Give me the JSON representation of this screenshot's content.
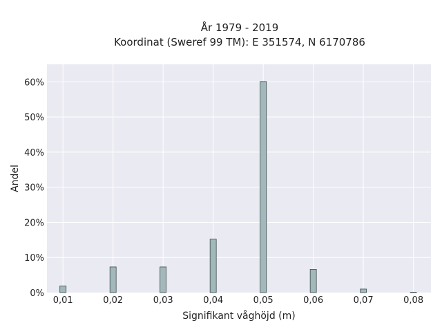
{
  "chart_data": {
    "type": "bar",
    "title": "År 1979 - 2019",
    "subtitle": "Koordinat (Sweref 99 TM): E 351574, N 6170786",
    "xlabel": "Signifikant våghöjd (m)",
    "ylabel": "Andel",
    "x": [
      0.01,
      0.02,
      0.03,
      0.04,
      0.05,
      0.06,
      0.07,
      0.08
    ],
    "values": [
      0.019,
      0.073,
      0.073,
      0.152,
      0.601,
      0.066,
      0.01,
      0.001
    ],
    "xticks": [
      "0,01",
      "0,02",
      "0,03",
      "0,04",
      "0,05",
      "0,06",
      "0,07",
      "0,08"
    ],
    "yticks": [
      "0%",
      "10%",
      "20%",
      "30%",
      "40%",
      "50%",
      "60%"
    ],
    "xlim": [
      0.0068,
      0.0835
    ],
    "ylim": [
      0,
      0.65
    ],
    "grid": true,
    "bar_color": "#a2b8ba",
    "bar_edge_color": "#3b4a4c",
    "plot_background": "#eaeaf2"
  }
}
